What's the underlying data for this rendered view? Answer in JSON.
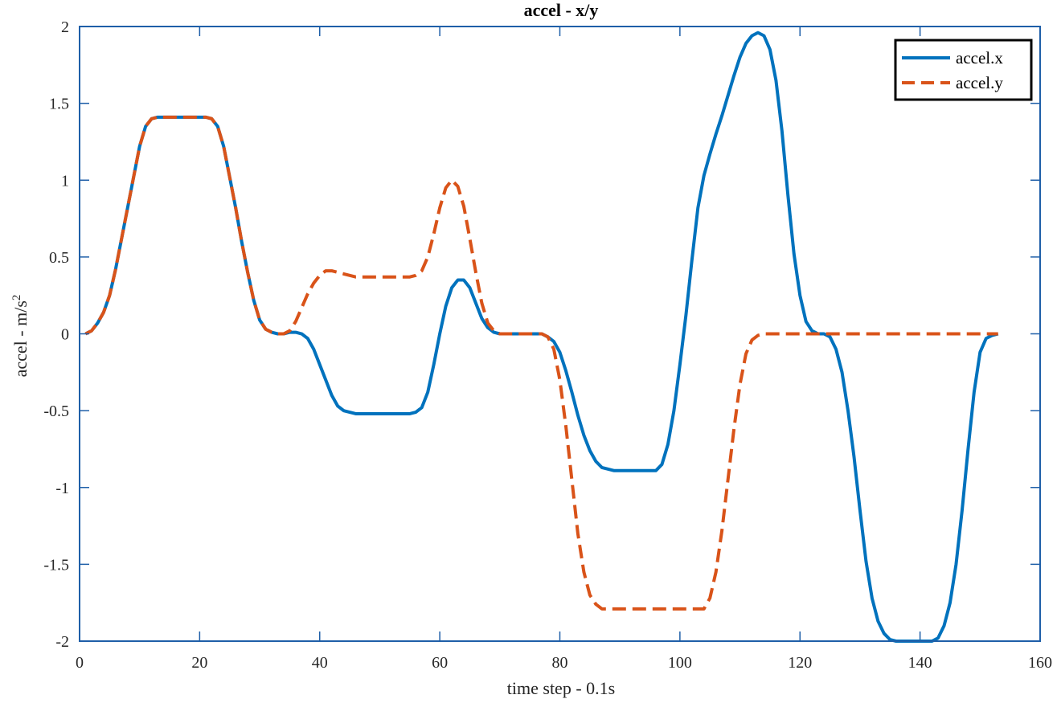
{
  "chart_data": {
    "type": "line",
    "title": "accel - x/y",
    "xlabel": "time step - 0.1s",
    "ylabel_text": "accel  -  m/s",
    "ylabel_superscript": "2",
    "xlim": [
      0,
      160
    ],
    "ylim": [
      -2,
      2
    ],
    "xticks": [
      0,
      20,
      40,
      60,
      80,
      100,
      120,
      140,
      160
    ],
    "xtick_labels": [
      "0",
      "20",
      "40",
      "60",
      "80",
      "100",
      "120",
      "140",
      "160"
    ],
    "yticks": [
      -2,
      -1.5,
      -1,
      -0.5,
      0,
      0.5,
      1,
      1.5,
      2
    ],
    "ytick_labels": [
      "-2",
      "-1.5",
      "-1",
      "-0.5",
      "0",
      "0.5",
      "1",
      "1.5",
      "2"
    ],
    "grid": false,
    "legend_position": "top-right",
    "colors": {
      "axes": "#1f5fa8",
      "legend_border": "#000000"
    },
    "series": [
      {
        "name": "accel.x",
        "color": "#0072BD",
        "style": "solid",
        "points": [
          [
            1,
            0
          ],
          [
            2,
            0.02
          ],
          [
            3,
            0.07
          ],
          [
            4,
            0.14
          ],
          [
            5,
            0.25
          ],
          [
            6,
            0.42
          ],
          [
            7,
            0.62
          ],
          [
            8,
            0.82
          ],
          [
            9,
            1.02
          ],
          [
            10,
            1.22
          ],
          [
            11,
            1.35
          ],
          [
            12,
            1.4
          ],
          [
            13,
            1.41
          ],
          [
            21,
            1.41
          ],
          [
            22,
            1.4
          ],
          [
            23,
            1.35
          ],
          [
            24,
            1.22
          ],
          [
            25,
            1.02
          ],
          [
            26,
            0.82
          ],
          [
            27,
            0.6
          ],
          [
            28,
            0.4
          ],
          [
            29,
            0.22
          ],
          [
            30,
            0.09
          ],
          [
            31,
            0.03
          ],
          [
            32,
            0.01
          ],
          [
            33,
            0.0
          ],
          [
            34,
            0.0
          ],
          [
            35,
            0.01
          ],
          [
            36,
            0.01
          ],
          [
            37,
            0.0
          ],
          [
            38,
            -0.03
          ],
          [
            39,
            -0.1
          ],
          [
            40,
            -0.2
          ],
          [
            41,
            -0.3
          ],
          [
            42,
            -0.4
          ],
          [
            43,
            -0.47
          ],
          [
            44,
            -0.5
          ],
          [
            45,
            -0.51
          ],
          [
            46,
            -0.52
          ],
          [
            55,
            -0.52
          ],
          [
            56,
            -0.51
          ],
          [
            57,
            -0.48
          ],
          [
            58,
            -0.38
          ],
          [
            59,
            -0.2
          ],
          [
            60,
            0.0
          ],
          [
            61,
            0.18
          ],
          [
            62,
            0.3
          ],
          [
            63,
            0.35
          ],
          [
            64,
            0.35
          ],
          [
            65,
            0.3
          ],
          [
            66,
            0.2
          ],
          [
            67,
            0.1
          ],
          [
            68,
            0.04
          ],
          [
            69,
            0.01
          ],
          [
            70,
            0.0
          ],
          [
            77,
            0.0
          ],
          [
            78,
            -0.02
          ],
          [
            79,
            -0.05
          ],
          [
            80,
            -0.12
          ],
          [
            81,
            -0.24
          ],
          [
            82,
            -0.38
          ],
          [
            83,
            -0.53
          ],
          [
            84,
            -0.66
          ],
          [
            85,
            -0.76
          ],
          [
            86,
            -0.83
          ],
          [
            87,
            -0.87
          ],
          [
            88,
            -0.88
          ],
          [
            89,
            -0.89
          ],
          [
            96,
            -0.89
          ],
          [
            97,
            -0.85
          ],
          [
            98,
            -0.72
          ],
          [
            99,
            -0.5
          ],
          [
            100,
            -0.2
          ],
          [
            101,
            0.12
          ],
          [
            102,
            0.48
          ],
          [
            103,
            0.82
          ],
          [
            104,
            1.03
          ],
          [
            105,
            1.17
          ],
          [
            106,
            1.3
          ],
          [
            107,
            1.42
          ],
          [
            108,
            1.55
          ],
          [
            109,
            1.68
          ],
          [
            110,
            1.8
          ],
          [
            111,
            1.89
          ],
          [
            112,
            1.94
          ],
          [
            113,
            1.96
          ],
          [
            114,
            1.94
          ],
          [
            115,
            1.85
          ],
          [
            116,
            1.65
          ],
          [
            117,
            1.32
          ],
          [
            118,
            0.9
          ],
          [
            119,
            0.52
          ],
          [
            120,
            0.25
          ],
          [
            121,
            0.08
          ],
          [
            122,
            0.02
          ],
          [
            123,
            0.0
          ],
          [
            124,
            0.0
          ],
          [
            125,
            -0.02
          ],
          [
            126,
            -0.1
          ],
          [
            127,
            -0.25
          ],
          [
            128,
            -0.5
          ],
          [
            129,
            -0.8
          ],
          [
            130,
            -1.15
          ],
          [
            131,
            -1.48
          ],
          [
            132,
            -1.72
          ],
          [
            133,
            -1.87
          ],
          [
            134,
            -1.95
          ],
          [
            135,
            -1.99
          ],
          [
            136,
            -2.0
          ],
          [
            142,
            -2.0
          ],
          [
            143,
            -1.98
          ],
          [
            144,
            -1.9
          ],
          [
            145,
            -1.75
          ],
          [
            146,
            -1.5
          ],
          [
            147,
            -1.15
          ],
          [
            148,
            -0.75
          ],
          [
            149,
            -0.38
          ],
          [
            150,
            -0.12
          ],
          [
            151,
            -0.03
          ],
          [
            152,
            -0.01
          ],
          [
            153,
            0.0
          ]
        ]
      },
      {
        "name": "accel.y",
        "color": "#D95319",
        "style": "dashed",
        "points": [
          [
            1,
            0
          ],
          [
            2,
            0.02
          ],
          [
            3,
            0.07
          ],
          [
            4,
            0.14
          ],
          [
            5,
            0.25
          ],
          [
            6,
            0.42
          ],
          [
            7,
            0.62
          ],
          [
            8,
            0.82
          ],
          [
            9,
            1.02
          ],
          [
            10,
            1.22
          ],
          [
            11,
            1.35
          ],
          [
            12,
            1.4
          ],
          [
            13,
            1.41
          ],
          [
            21,
            1.41
          ],
          [
            22,
            1.4
          ],
          [
            23,
            1.35
          ],
          [
            24,
            1.22
          ],
          [
            25,
            1.02
          ],
          [
            26,
            0.82
          ],
          [
            27,
            0.6
          ],
          [
            28,
            0.4
          ],
          [
            29,
            0.22
          ],
          [
            30,
            0.09
          ],
          [
            31,
            0.03
          ],
          [
            32,
            0.01
          ],
          [
            33,
            0.0
          ],
          [
            34,
            0.0
          ],
          [
            35,
            0.02
          ],
          [
            36,
            0.08
          ],
          [
            37,
            0.17
          ],
          [
            38,
            0.26
          ],
          [
            39,
            0.33
          ],
          [
            40,
            0.38
          ],
          [
            41,
            0.41
          ],
          [
            42,
            0.41
          ],
          [
            43,
            0.4
          ],
          [
            44,
            0.39
          ],
          [
            45,
            0.38
          ],
          [
            46,
            0.37
          ],
          [
            55,
            0.37
          ],
          [
            56,
            0.38
          ],
          [
            57,
            0.41
          ],
          [
            58,
            0.5
          ],
          [
            59,
            0.65
          ],
          [
            60,
            0.82
          ],
          [
            61,
            0.95
          ],
          [
            62,
            1.0
          ],
          [
            63,
            0.96
          ],
          [
            64,
            0.83
          ],
          [
            65,
            0.62
          ],
          [
            66,
            0.4
          ],
          [
            67,
            0.2
          ],
          [
            68,
            0.07
          ],
          [
            69,
            0.02
          ],
          [
            70,
            0.0
          ],
          [
            77,
            0.0
          ],
          [
            78,
            -0.02
          ],
          [
            79,
            -0.1
          ],
          [
            80,
            -0.3
          ],
          [
            81,
            -0.6
          ],
          [
            82,
            -0.95
          ],
          [
            83,
            -1.3
          ],
          [
            84,
            -1.55
          ],
          [
            85,
            -1.7
          ],
          [
            86,
            -1.76
          ],
          [
            87,
            -1.79
          ],
          [
            104,
            -1.79
          ],
          [
            105,
            -1.72
          ],
          [
            106,
            -1.55
          ],
          [
            107,
            -1.28
          ],
          [
            108,
            -0.95
          ],
          [
            109,
            -0.62
          ],
          [
            110,
            -0.33
          ],
          [
            111,
            -0.13
          ],
          [
            112,
            -0.04
          ],
          [
            113,
            -0.01
          ],
          [
            114,
            0.0
          ],
          [
            153,
            0.0
          ]
        ]
      }
    ]
  }
}
